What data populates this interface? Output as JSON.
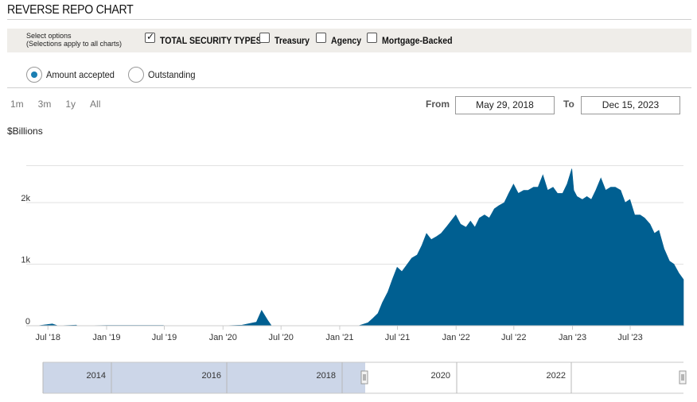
{
  "title": "REVERSE REPO CHART",
  "options": {
    "hint_line1": "Select options",
    "hint_line2": "(Selections apply to all charts)",
    "checkboxes": [
      {
        "label": "TOTAL SECURITY TYPES",
        "checked": true
      },
      {
        "label": "Treasury",
        "checked": false
      },
      {
        "label": "Agency",
        "checked": false
      },
      {
        "label": "Mortgage-Backed",
        "checked": false
      }
    ]
  },
  "radios": [
    {
      "label": "Amount accepted",
      "selected": true
    },
    {
      "label": "Outstanding",
      "selected": false
    }
  ],
  "range_buttons": [
    "1m",
    "3m",
    "1y",
    "All"
  ],
  "dates": {
    "from_label": "From",
    "from_value": "May 29, 2018",
    "to_label": "To",
    "to_value": "Dec 15, 2023"
  },
  "colors": {
    "series": "#005f91",
    "navigator_mask": "#ccd6e8",
    "radio_on": "#1b7fb3"
  },
  "chart_data": {
    "type": "area",
    "ylabel": "$Billions",
    "ylim": [
      0,
      2600
    ],
    "y_ticks": [
      {
        "value": 0,
        "label": "0"
      },
      {
        "value": 1000,
        "label": "1k"
      },
      {
        "value": 2000,
        "label": "2k"
      }
    ],
    "x_range": [
      "2018-05-29",
      "2023-12-15"
    ],
    "x_ticks": [
      "Jul '18",
      "Jan '19",
      "Jul '19",
      "Jan '20",
      "Jul '20",
      "Jan '21",
      "Jul '21",
      "Jan '22",
      "Jul '22",
      "Jan '23",
      "Jul '23"
    ],
    "series": [
      {
        "color": "#005f91",
        "points": [
          [
            "2018-05-29",
            0
          ],
          [
            "2018-07-15",
            30
          ],
          [
            "2018-08-01",
            0
          ],
          [
            "2018-09-28",
            10
          ],
          [
            "2018-10-01",
            0
          ],
          [
            "2019-01-02",
            5
          ],
          [
            "2019-06-28",
            5
          ],
          [
            "2019-07-01",
            0
          ],
          [
            "2019-12-31",
            0
          ],
          [
            "2020-01-01",
            0
          ],
          [
            "2020-03-01",
            10
          ],
          [
            "2020-04-15",
            60
          ],
          [
            "2020-05-01",
            250
          ],
          [
            "2020-05-20",
            90
          ],
          [
            "2020-06-01",
            0
          ],
          [
            "2021-03-01",
            0
          ],
          [
            "2021-03-31",
            50
          ],
          [
            "2021-04-15",
            120
          ],
          [
            "2021-05-01",
            200
          ],
          [
            "2021-05-15",
            380
          ],
          [
            "2021-06-01",
            550
          ],
          [
            "2021-06-15",
            750
          ],
          [
            "2021-06-30",
            950
          ],
          [
            "2021-07-15",
            880
          ],
          [
            "2021-08-01",
            1000
          ],
          [
            "2021-08-15",
            1100
          ],
          [
            "2021-09-01",
            1150
          ],
          [
            "2021-09-15",
            1300
          ],
          [
            "2021-09-30",
            1500
          ],
          [
            "2021-10-15",
            1400
          ],
          [
            "2021-11-01",
            1450
          ],
          [
            "2021-11-15",
            1500
          ],
          [
            "2021-12-01",
            1600
          ],
          [
            "2021-12-31",
            1800
          ],
          [
            "2022-01-15",
            1650
          ],
          [
            "2022-02-01",
            1600
          ],
          [
            "2022-02-15",
            1700
          ],
          [
            "2022-03-01",
            1600
          ],
          [
            "2022-03-15",
            1750
          ],
          [
            "2022-03-31",
            1800
          ],
          [
            "2022-04-15",
            1750
          ],
          [
            "2022-05-01",
            1900
          ],
          [
            "2022-05-15",
            1950
          ],
          [
            "2022-06-01",
            2000
          ],
          [
            "2022-06-15",
            2150
          ],
          [
            "2022-06-30",
            2300
          ],
          [
            "2022-07-15",
            2150
          ],
          [
            "2022-08-01",
            2200
          ],
          [
            "2022-08-15",
            2200
          ],
          [
            "2022-09-01",
            2250
          ],
          [
            "2022-09-15",
            2250
          ],
          [
            "2022-09-30",
            2450
          ],
          [
            "2022-10-15",
            2200
          ],
          [
            "2022-11-01",
            2250
          ],
          [
            "2022-11-15",
            2150
          ],
          [
            "2022-12-01",
            2150
          ],
          [
            "2022-12-15",
            2300
          ],
          [
            "2022-12-30",
            2550
          ],
          [
            "2023-01-05",
            2200
          ],
          [
            "2023-01-15",
            2100
          ],
          [
            "2023-02-01",
            2050
          ],
          [
            "2023-02-15",
            2100
          ],
          [
            "2023-03-01",
            2050
          ],
          [
            "2023-03-15",
            2200
          ],
          [
            "2023-03-31",
            2400
          ],
          [
            "2023-04-15",
            2200
          ],
          [
            "2023-05-01",
            2250
          ],
          [
            "2023-05-15",
            2250
          ],
          [
            "2023-06-01",
            2200
          ],
          [
            "2023-06-15",
            2000
          ],
          [
            "2023-06-30",
            2050
          ],
          [
            "2023-07-15",
            1800
          ],
          [
            "2023-08-01",
            1800
          ],
          [
            "2023-08-15",
            1750
          ],
          [
            "2023-09-01",
            1650
          ],
          [
            "2023-09-15",
            1500
          ],
          [
            "2023-09-29",
            1550
          ],
          [
            "2023-10-15",
            1250
          ],
          [
            "2023-11-01",
            1050
          ],
          [
            "2023-11-15",
            1000
          ],
          [
            "2023-12-01",
            850
          ],
          [
            "2023-12-15",
            750
          ]
        ]
      }
    ],
    "navigator_labels": [
      "2014",
      "2016",
      "2018",
      "2020",
      "2022"
    ]
  }
}
